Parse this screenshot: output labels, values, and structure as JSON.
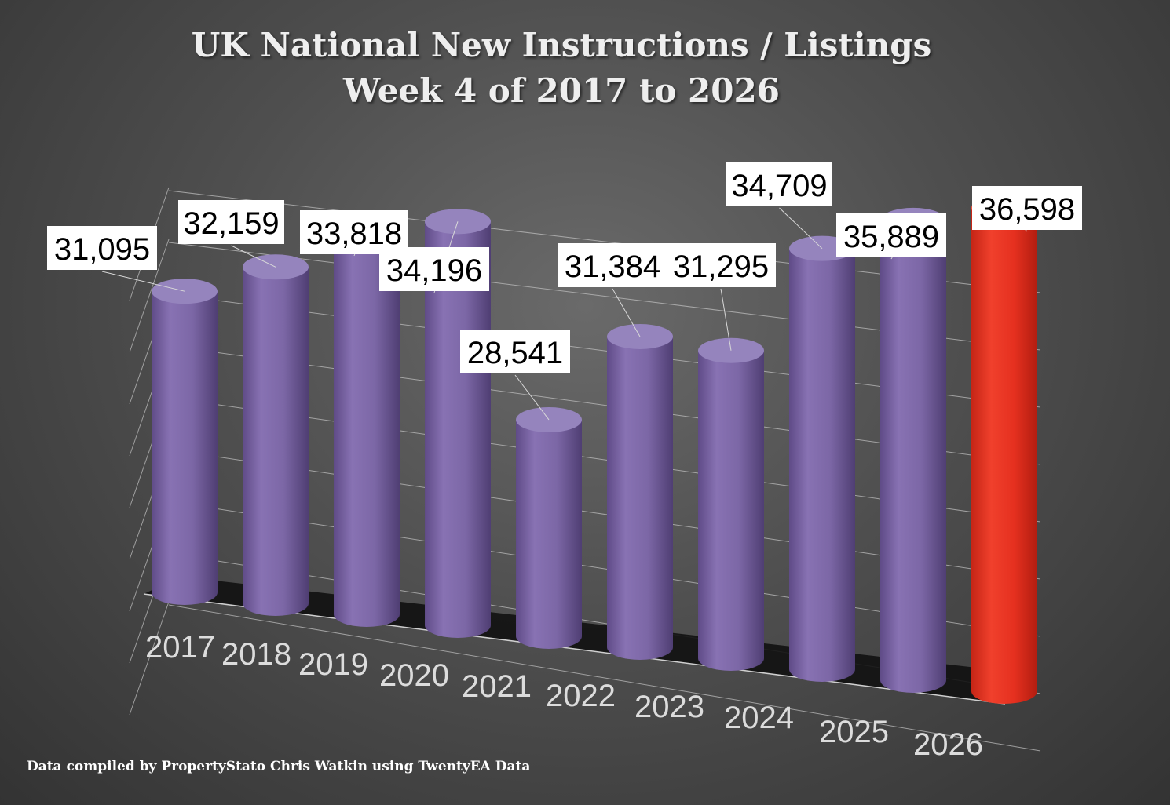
{
  "title_line1": "UK National New Instructions / Listings",
  "title_line2": "Week 4 of 2017 to 2026",
  "footer": "Data compiled by PropertyStato Chris Watkin using TwentyEA Data",
  "colors": {
    "bar": "#7e68a8",
    "highlight_bar": "#e8301f",
    "gridline": "#bdbdbd",
    "floor": "#111111"
  },
  "chart_data": {
    "type": "bar",
    "style": "3d-cylinder",
    "title": "UK National New Instructions / Listings Week 4 of 2017 to 2026",
    "categories": [
      "2017",
      "2018",
      "2019",
      "2020",
      "2021",
      "2022",
      "2023",
      "2024",
      "2025",
      "2026"
    ],
    "values": [
      31095,
      32159,
      33818,
      34196,
      28541,
      31384,
      31295,
      34709,
      35889,
      36598
    ],
    "value_labels": [
      "31,095",
      "32,159",
      "33,818",
      "34,196",
      "28,541",
      "31,384",
      "31,295",
      "34,709",
      "35,889",
      "36,598"
    ],
    "highlight_index": 9,
    "xlabel": "",
    "ylabel": "",
    "grid": true,
    "legend": "none"
  }
}
